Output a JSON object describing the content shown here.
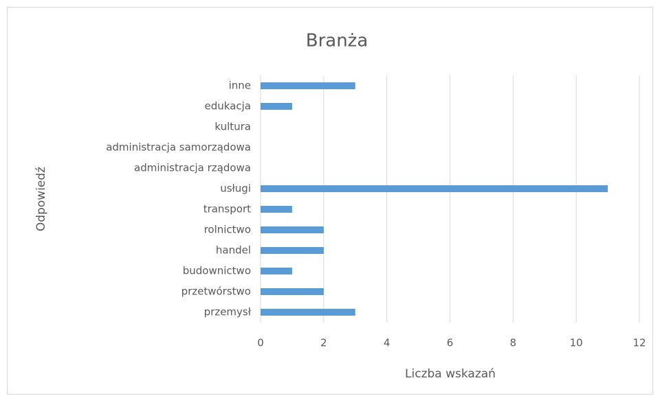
{
  "chart_data": {
    "type": "bar",
    "horizontal": true,
    "title": "Branża",
    "x_label": "Liczba wskazań",
    "y_label": "Odpowiedź",
    "categories": [
      "przemysł",
      "przetwórstwo",
      "budownictwo",
      "handel",
      "rolnictwo",
      "transport",
      "usługi",
      "administracja rządowa",
      "administracja samorządowa",
      "kultura",
      "edukacja",
      "inne"
    ],
    "values": [
      3,
      2,
      1,
      2,
      2,
      1,
      11,
      0,
      0,
      0,
      1,
      3
    ],
    "color": "#5b9bd5",
    "xlim": [
      0,
      12
    ],
    "xticks": [
      0,
      2,
      4,
      6,
      8,
      10,
      12
    ],
    "grid": true
  }
}
